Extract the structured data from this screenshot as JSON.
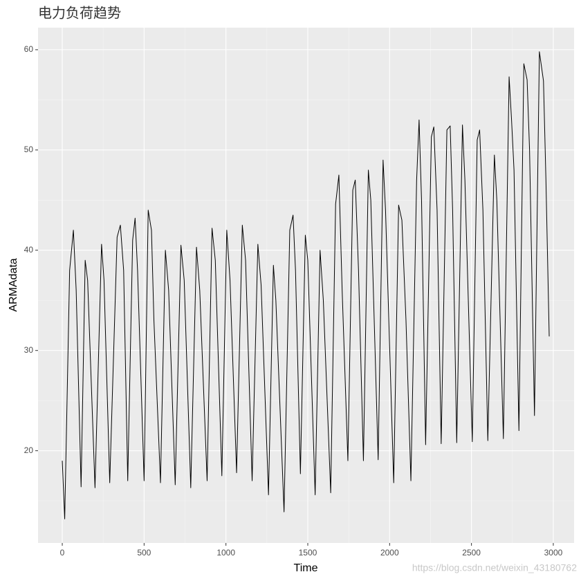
{
  "chart_data": {
    "type": "line",
    "title": "电力负荷趋势",
    "x_label": "Time",
    "y_label": "ARMAdata",
    "watermark": "https://blog.csdn.net/weixin_43180762",
    "color": "#000000",
    "grid": true,
    "xlim": [
      -148,
      3127
    ],
    "ylim": [
      10.8,
      62.2
    ],
    "xticks": [
      0,
      500,
      1000,
      1500,
      2000,
      2500,
      3000
    ],
    "yticks": [
      20,
      30,
      40,
      50,
      60
    ],
    "x": [
      0,
      15,
      45,
      68,
      85,
      115,
      140,
      155,
      200,
      240,
      255,
      290,
      335,
      355,
      375,
      400,
      430,
      445,
      460,
      500,
      525,
      545,
      560,
      600,
      630,
      650,
      690,
      725,
      745,
      785,
      820,
      840,
      885,
      915,
      935,
      975,
      1005,
      1025,
      1065,
      1100,
      1120,
      1160,
      1195,
      1215,
      1260,
      1290,
      1305,
      1355,
      1390,
      1410,
      1425,
      1455,
      1485,
      1500,
      1545,
      1575,
      1595,
      1640,
      1670,
      1690,
      1710,
      1745,
      1775,
      1790,
      1810,
      1840,
      1870,
      1885,
      1930,
      1960,
      1975,
      2025,
      2055,
      2075,
      2100,
      2130,
      2165,
      2180,
      2195,
      2220,
      2255,
      2270,
      2290,
      2315,
      2350,
      2370,
      2385,
      2410,
      2445,
      2460,
      2505,
      2535,
      2550,
      2570,
      2600,
      2640,
      2655,
      2695,
      2730,
      2745,
      2760,
      2790,
      2820,
      2840,
      2855,
      2885,
      2915,
      2940,
      2955,
      2975
    ],
    "values": [
      19,
      13.2,
      38,
      42,
      36,
      16.4,
      39,
      37,
      16.3,
      40.6,
      37,
      16.8,
      41.3,
      42.5,
      38,
      17,
      41,
      43.2,
      38,
      17,
      44,
      42,
      33,
      16.8,
      40,
      36,
      16.6,
      40.5,
      37,
      16.3,
      40.3,
      36,
      17,
      42.2,
      39,
      17.5,
      42,
      37,
      17.8,
      42.5,
      39,
      17,
      40.6,
      36.5,
      15.6,
      38.5,
      35,
      13.9,
      42,
      43.5,
      38,
      17.7,
      41.5,
      39,
      15.6,
      40,
      35,
      15.8,
      44.6,
      47.5,
      36,
      19,
      46,
      47,
      38,
      19,
      48,
      45,
      19.1,
      49,
      44,
      16.8,
      44.5,
      43,
      33,
      17,
      47,
      53,
      45,
      20.6,
      51.3,
      52.3,
      44,
      20.7,
      52,
      52.4,
      44,
      20.8,
      52.5,
      47,
      20.9,
      51,
      52,
      44,
      21,
      49.5,
      45,
      21.2,
      57.3,
      53,
      48,
      22,
      58.6,
      57,
      50,
      23.5,
      59.8,
      56.9,
      47,
      31.4
    ]
  }
}
